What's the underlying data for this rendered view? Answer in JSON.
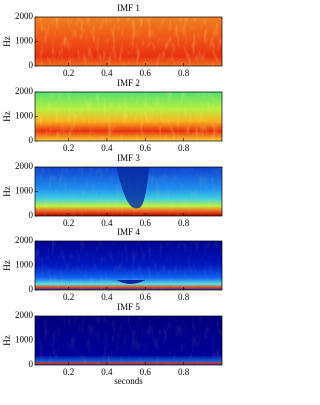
{
  "chart_data": [
    {
      "type": "spectrogram",
      "title": "IMF 1",
      "ylabel": "Hz",
      "xlim": [
        0.025,
        1.0
      ],
      "xticks": [
        0.2,
        0.4,
        0.6,
        0.8
      ],
      "ylim": [
        0,
        2000
      ],
      "yticks": [
        0,
        1000,
        2000
      ]
    },
    {
      "type": "spectrogram",
      "title": "IMF 2",
      "ylabel": "Hz",
      "xlim": [
        0.025,
        1.0
      ],
      "xticks": [
        0.2,
        0.4,
        0.6,
        0.8
      ],
      "ylim": [
        0,
        2000
      ],
      "yticks": [
        0,
        1000,
        2000
      ]
    },
    {
      "type": "spectrogram",
      "title": "IMF 3",
      "ylabel": "Hz",
      "xlim": [
        0.025,
        1.0
      ],
      "xticks": [
        0.2,
        0.4,
        0.6,
        0.8
      ],
      "ylim": [
        0,
        2000
      ],
      "yticks": [
        0,
        1000,
        2000
      ]
    },
    {
      "type": "spectrogram",
      "title": "IMF 4",
      "ylabel": "Hz",
      "xlim": [
        0.025,
        1.0
      ],
      "xticks": [
        0.2,
        0.4,
        0.6,
        0.8
      ],
      "ylim": [
        0,
        2000
      ],
      "yticks": [
        0,
        1000,
        2000
      ]
    },
    {
      "type": "spectrogram",
      "title": "IMF 5",
      "ylabel": "Hz",
      "xlabel": "seconds",
      "xlim": [
        0.025,
        1.0
      ],
      "xticks": [
        0.2,
        0.4,
        0.6,
        0.8
      ],
      "ylim": [
        0,
        2000
      ],
      "yticks": [
        0,
        1000,
        2000
      ]
    }
  ]
}
